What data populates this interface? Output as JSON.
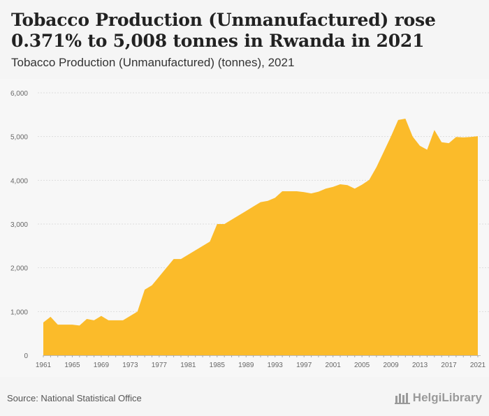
{
  "header": {
    "title": "Tobacco Production (Unmanufactured) rose 0.371% to 5,008 tonnes in Rwanda in 2021",
    "subtitle": "Tobacco Production (Unmanufactured) (tonnes), 2021"
  },
  "footer": {
    "source": "Source: National Statistical Office",
    "logo_text": "HelgiLibrary"
  },
  "colors": {
    "area": "#fbbb2a",
    "grid": "#dddddd",
    "axis_text": "#666666"
  },
  "chart_data": {
    "type": "area",
    "x": [
      1961,
      1962,
      1963,
      1964,
      1965,
      1966,
      1967,
      1968,
      1969,
      1970,
      1971,
      1972,
      1973,
      1974,
      1975,
      1976,
      1977,
      1978,
      1979,
      1980,
      1981,
      1982,
      1983,
      1984,
      1985,
      1986,
      1987,
      1988,
      1989,
      1990,
      1991,
      1992,
      1993,
      1994,
      1995,
      1996,
      1997,
      1998,
      1999,
      2000,
      2001,
      2002,
      2003,
      2004,
      2005,
      2006,
      2007,
      2008,
      2009,
      2010,
      2011,
      2012,
      2013,
      2014,
      2015,
      2016,
      2017,
      2018,
      2019,
      2020,
      2021
    ],
    "series": [
      {
        "values": [
          750,
          880,
          700,
          700,
          700,
          680,
          830,
          800,
          900,
          800,
          800,
          800,
          900,
          1000,
          1500,
          1600,
          1800,
          2000,
          2200,
          2200,
          2300,
          2400,
          2500,
          2600,
          3000,
          3000,
          3100,
          3200,
          3300,
          3400,
          3500,
          3530,
          3600,
          3750,
          3750,
          3750,
          3730,
          3700,
          3740,
          3810,
          3850,
          3910,
          3890,
          3810,
          3900,
          4010,
          4300,
          4650,
          5000,
          5380,
          5410,
          5000,
          4790,
          4700,
          5150,
          4870,
          4850,
          4990,
          4980,
          4990,
          5008
        ]
      }
    ],
    "xticks": [
      "1961",
      "1965",
      "1969",
      "1973",
      "1977",
      "1981",
      "1985",
      "1989",
      "1993",
      "1997",
      "2001",
      "2005",
      "2009",
      "2013",
      "2017",
      "2021"
    ],
    "yticks": [
      "0",
      "1,000",
      "2,000",
      "3,000",
      "4,000",
      "5,000",
      "6,000"
    ],
    "ylim": [
      0,
      6000
    ],
    "xlim": [
      1961,
      2021
    ],
    "grid": true,
    "legend": "none"
  }
}
